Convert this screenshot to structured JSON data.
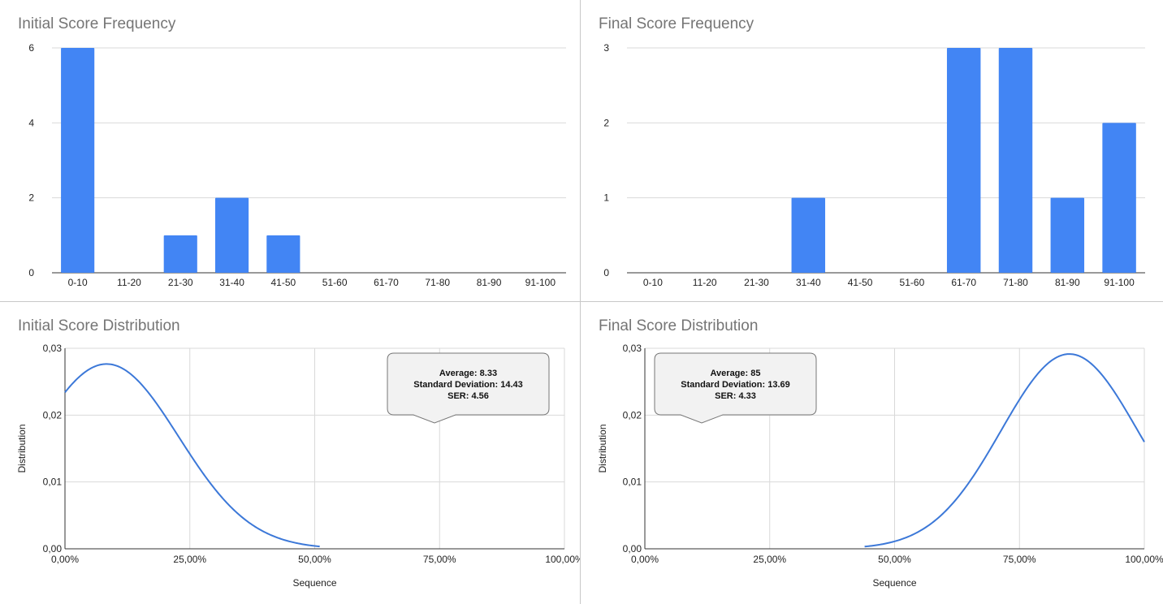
{
  "chart_data": [
    {
      "type": "bar",
      "title": "Initial Score Frequency",
      "categories": [
        "0-10",
        "11-20",
        "21-30",
        "31-40",
        "41-50",
        "51-60",
        "61-70",
        "71-80",
        "81-90",
        "91-100"
      ],
      "values": [
        6,
        0,
        1,
        2,
        1,
        0,
        0,
        0,
        0,
        0
      ],
      "ylim": [
        0,
        6
      ],
      "yticks": [
        "0",
        "2",
        "4",
        "6"
      ],
      "grid": true,
      "color": "#4285f4"
    },
    {
      "type": "bar",
      "title": "Final Score Frequency",
      "categories": [
        "0-10",
        "11-20",
        "21-30",
        "31-40",
        "41-50",
        "51-60",
        "61-70",
        "71-80",
        "81-90",
        "91-100"
      ],
      "values": [
        0,
        0,
        0,
        1,
        0,
        0,
        3,
        3,
        1,
        2
      ],
      "ylim": [
        0,
        3
      ],
      "yticks": [
        "0",
        "1",
        "2",
        "3"
      ],
      "grid": true,
      "color": "#4285f4"
    },
    {
      "type": "line",
      "title": "Initial Score Distribution",
      "xlabel": "Sequence",
      "ylabel": "Distribution",
      "xlim": [
        0,
        100
      ],
      "ylim": [
        0,
        0.03
      ],
      "xticks": [
        "0,00%",
        "25,00%",
        "50,00%",
        "75,00%",
        "100,00%"
      ],
      "yticks": [
        "0,00",
        "0,01",
        "0,02",
        "0,03"
      ],
      "curve": {
        "mean": 8.33,
        "sd": 14.43,
        "x_start": 0,
        "x_end": 51
      },
      "annotation": {
        "lines": [
          "Average: 8.33",
          "Standard Deviation: 14.43",
          "SER: 4.56"
        ],
        "placement": "top-right"
      },
      "grid": true,
      "color": "#3c78d8"
    },
    {
      "type": "line",
      "title": "Final Score Distribution",
      "xlabel": "Sequence",
      "ylabel": "Distribution",
      "xlim": [
        0,
        100
      ],
      "ylim": [
        0,
        0.03
      ],
      "xticks": [
        "0,00%",
        "25,00%",
        "50,00%",
        "75,00%",
        "100,00%"
      ],
      "yticks": [
        "0,00",
        "0,01",
        "0,02",
        "0,03"
      ],
      "curve": {
        "mean": 85,
        "sd": 13.69,
        "x_start": 44,
        "x_end": 100
      },
      "annotation": {
        "lines": [
          "Average: 85",
          "Standard Deviation: 13.69",
          "SER: 4.33"
        ],
        "placement": "top-left"
      },
      "grid": true,
      "color": "#3c78d8"
    }
  ]
}
